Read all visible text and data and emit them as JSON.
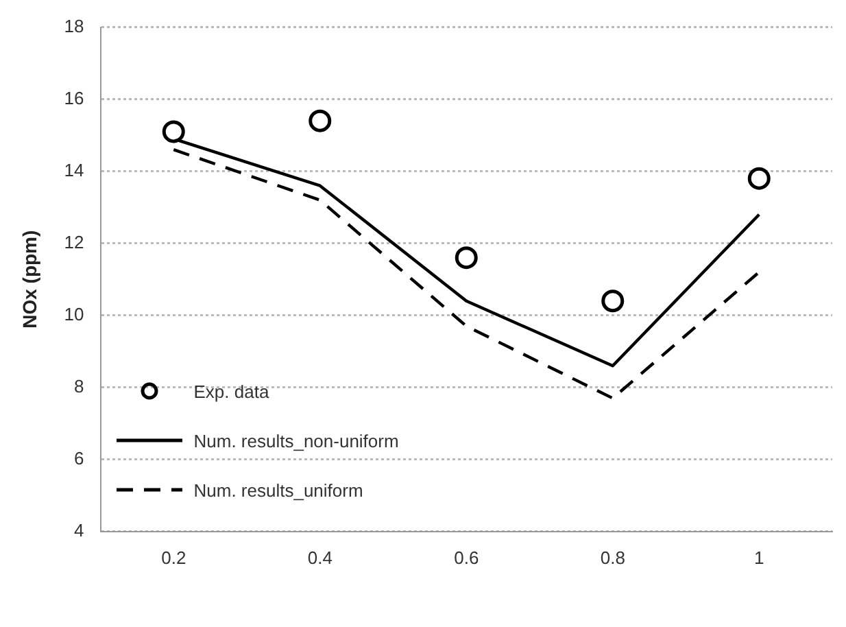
{
  "chart_data": {
    "type": "line",
    "ylabel": "NOx (ppm)",
    "categories": [
      "0.2",
      "0.4",
      "0.6",
      "0.8",
      "1"
    ],
    "series": [
      {
        "name": "Exp. data",
        "type": "scatter",
        "marker": "circle",
        "color": "#000000",
        "values": [
          15.1,
          15.4,
          11.6,
          10.4,
          13.8
        ]
      },
      {
        "name": "Num. results_non-uniform",
        "type": "line",
        "marker": "none",
        "line_style": "solid",
        "color": "#000000",
        "values": [
          14.9,
          13.6,
          10.4,
          8.6,
          12.8
        ]
      },
      {
        "name": "Num. results_uniform",
        "type": "line",
        "marker": "none",
        "line_style": "dashed",
        "color": "#000000",
        "values": [
          14.6,
          13.2,
          9.7,
          7.7,
          11.2
        ]
      }
    ],
    "ylim": [
      4,
      18
    ],
    "yticks": [
      4,
      6,
      8,
      10,
      12,
      14,
      16,
      18
    ],
    "grid": "y",
    "legend": "bottom left"
  }
}
